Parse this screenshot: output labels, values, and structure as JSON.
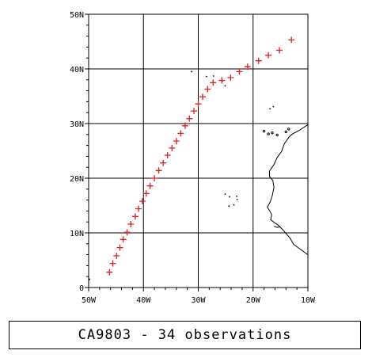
{
  "chart_data": {
    "type": "scatter",
    "title": "",
    "xlabel": "",
    "ylabel": "",
    "xlim": [
      -50,
      -10
    ],
    "ylim": [
      0,
      50
    ],
    "x_ticks": [
      "50W",
      "40W",
      "30W",
      "20W",
      "10W"
    ],
    "y_ticks": [
      "0",
      "10N",
      "20N",
      "30N",
      "40N",
      "50N"
    ],
    "grid": true,
    "marker": "+",
    "marker_color": "#e02020",
    "points": [
      {
        "lon": -46.2,
        "lat": 2.8
      },
      {
        "lon": -45.6,
        "lat": 4.4
      },
      {
        "lon": -44.9,
        "lat": 5.8
      },
      {
        "lon": -44.3,
        "lat": 7.3
      },
      {
        "lon": -43.7,
        "lat": 8.8
      },
      {
        "lon": -43.0,
        "lat": 10.1
      },
      {
        "lon": -42.3,
        "lat": 11.6
      },
      {
        "lon": -41.5,
        "lat": 13.0
      },
      {
        "lon": -40.9,
        "lat": 14.4
      },
      {
        "lon": -40.2,
        "lat": 15.8
      },
      {
        "lon": -39.5,
        "lat": 17.2
      },
      {
        "lon": -38.8,
        "lat": 18.6
      },
      {
        "lon": -38.0,
        "lat": 20.0
      },
      {
        "lon": -37.2,
        "lat": 21.4
      },
      {
        "lon": -36.4,
        "lat": 22.8
      },
      {
        "lon": -35.6,
        "lat": 24.2
      },
      {
        "lon": -34.8,
        "lat": 25.5
      },
      {
        "lon": -34.0,
        "lat": 26.8
      },
      {
        "lon": -33.2,
        "lat": 28.2
      },
      {
        "lon": -32.4,
        "lat": 29.6
      },
      {
        "lon": -31.6,
        "lat": 30.9
      },
      {
        "lon": -30.8,
        "lat": 32.3
      },
      {
        "lon": -30.0,
        "lat": 33.6
      },
      {
        "lon": -29.2,
        "lat": 34.9
      },
      {
        "lon": -28.3,
        "lat": 36.3
      },
      {
        "lon": -27.3,
        "lat": 37.5
      },
      {
        "lon": -25.7,
        "lat": 37.9
      },
      {
        "lon": -24.1,
        "lat": 38.4
      },
      {
        "lon": -22.5,
        "lat": 39.5
      },
      {
        "lon": -21.0,
        "lat": 40.4
      },
      {
        "lon": -19.0,
        "lat": 41.5
      },
      {
        "lon": -17.2,
        "lat": 42.5
      },
      {
        "lon": -15.2,
        "lat": 43.4
      },
      {
        "lon": -13.0,
        "lat": 45.3
      }
    ],
    "land_color": "#000000"
  },
  "caption": "CA9803 - 34 observations"
}
